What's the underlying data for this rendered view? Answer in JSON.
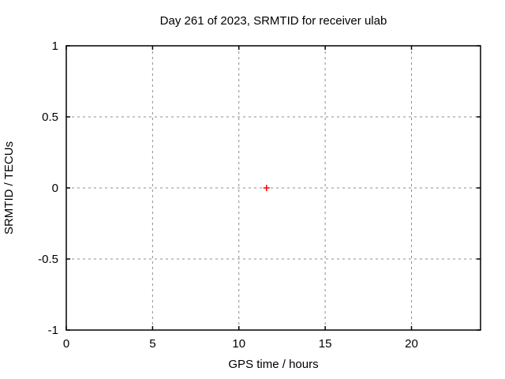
{
  "chart_data": {
    "type": "scatter",
    "title": "Day 261 of 2023, SRMTID for receiver ulab",
    "xlabel": "GPS time / hours",
    "ylabel": "SRMTID / TECUs",
    "xlim": [
      0,
      24
    ],
    "ylim": [
      -1,
      1
    ],
    "xticks": [
      0,
      5,
      10,
      15,
      20
    ],
    "yticks": [
      -1,
      -0.5,
      0,
      0.5,
      1
    ],
    "grid": true,
    "legend_position": "none",
    "colors": {
      "background": "#ffffff",
      "border": "#000000",
      "grid": "#8c8c8c",
      "marker": "#ff0000",
      "text": "#000000"
    },
    "series": [
      {
        "name": "SRMTID",
        "marker": "plus",
        "color": "#ff0000",
        "points": [
          {
            "x": 11.6,
            "y": 0
          }
        ]
      }
    ]
  }
}
